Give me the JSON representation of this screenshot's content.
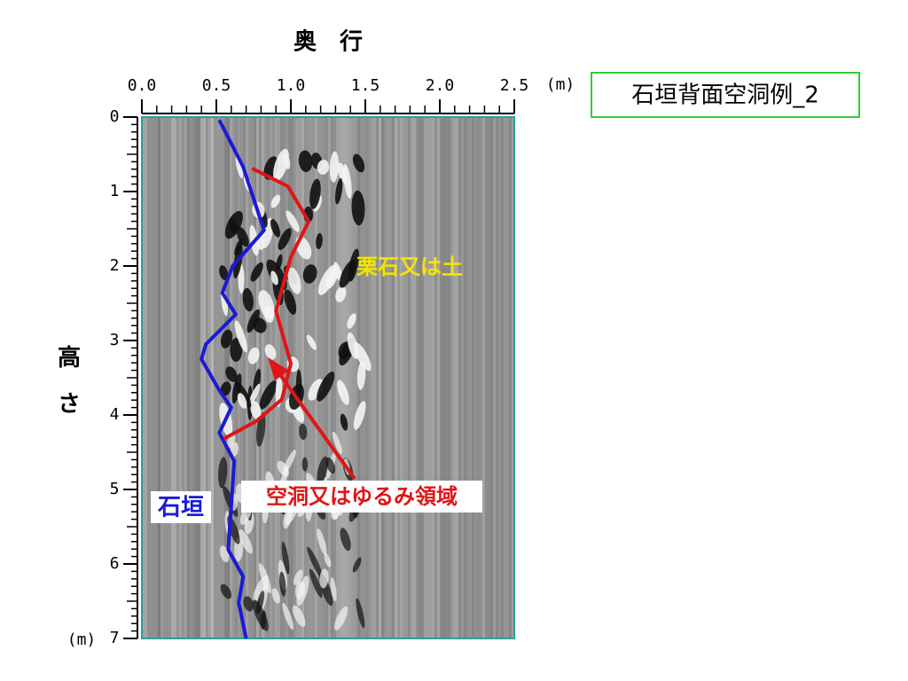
{
  "chart_data": {
    "type": "line",
    "title": "石垣背面空洞例_2",
    "x_label": "奥　行",
    "y_label": "高　さ",
    "x_unit": "(m)",
    "y_unit": "(m)",
    "xlim": [
      0,
      2.5
    ],
    "xticks": [
      {
        "value": 0,
        "label": "0.0"
      },
      {
        "value": 0.5,
        "label": "0.5"
      },
      {
        "value": 1,
        "label": "1.0"
      },
      {
        "value": 1.5,
        "label": "1.5"
      },
      {
        "value": 2,
        "label": "2.0"
      },
      {
        "value": 2.5,
        "label": "2.5"
      }
    ],
    "ylim": [
      7,
      0
    ],
    "yticks": [
      0,
      1,
      2,
      3,
      4,
      5,
      6,
      7
    ],
    "series": [
      {
        "name": "石垣",
        "color": "#1a1ad6",
        "x": [
          0.52,
          0.68,
          0.82,
          0.61,
          0.54,
          0.63,
          0.43,
          0.4,
          0.52,
          0.6,
          0.52,
          0.62,
          0.58,
          0.68,
          0.65,
          0.7
        ],
        "values": [
          0.04,
          0.67,
          1.52,
          2.0,
          2.36,
          2.65,
          3.05,
          3.25,
          3.67,
          3.9,
          4.24,
          4.62,
          5.81,
          6.17,
          6.52,
          7.0
        ]
      },
      {
        "color": "#e01515",
        "x": [
          0.74,
          0.98,
          1.12,
          1.0,
          0.9,
          1.0,
          0.94,
          0.77,
          0.55
        ],
        "values": [
          0.69,
          0.93,
          1.4,
          1.88,
          2.6,
          3.31,
          3.79,
          4.08,
          4.32
        ]
      }
    ],
    "annotations": [
      {
        "text": "栗石又は土",
        "color": "#f5e400"
      },
      {
        "text": "空洞又はゆるみ領域",
        "color": "#e01515"
      }
    ]
  }
}
